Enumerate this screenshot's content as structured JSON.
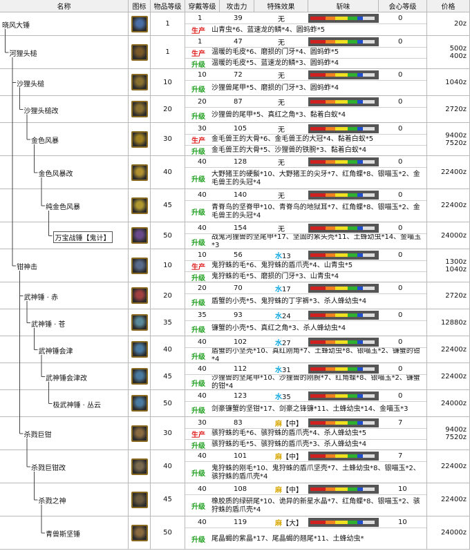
{
  "table": {
    "headers": [
      "名称",
      "图标",
      "物品等级",
      "穿戴等级",
      "攻击力",
      "特殊效果",
      "斩味",
      "会心等级",
      "价格"
    ],
    "rows": [
      {
        "name": "晓风大锤",
        "rarity": 1,
        "slots": 1,
        "attack": 39,
        "special": "无",
        "affinity": 0,
        "price": [
          "20z"
        ],
        "materials": [
          {
            "type": "生产",
            "text": "山青虫*6、蓝速龙的鳞*4、圆蚂蚱*5"
          }
        ]
      },
      {
        "name": "河狸头槌",
        "rarity": 1,
        "slots": 1,
        "attack": 47,
        "special": "无",
        "affinity": 0,
        "price": [
          "500z",
          "400z"
        ],
        "materials": [
          {
            "type": "生产",
            "text": "温暖的毛皮*6、磨损的门牙*4、圆蚂蚱*5"
          },
          {
            "type": "升级",
            "text": "温暖的毛皮*5、蓝速龙的鳞*3、圆蚂蚱*4"
          }
        ]
      },
      {
        "name": "沙狸头槌",
        "rarity": 10,
        "slots": 10,
        "attack": 72,
        "special": "无",
        "affinity": 0,
        "price": [
          "1040z"
        ],
        "materials": [
          {
            "type": "升级",
            "text": "沙狸兽尾甲*5、磨损的门牙*3、圆蚂蚱*4"
          }
        ]
      },
      {
        "name": "沙狸头槌改",
        "rarity": 20,
        "slots": 20,
        "attack": 87,
        "special": "无",
        "affinity": 0,
        "price": [
          "2720z"
        ],
        "materials": [
          {
            "type": "升级",
            "text": "沙狸兽的尾甲*5、真红之角*3、黏着白蚁*4"
          }
        ]
      },
      {
        "name": "金色风暴",
        "rarity": 30,
        "slots": 30,
        "attack": 105,
        "special": "无",
        "affinity": 0,
        "price": [
          "9400z",
          "7520z"
        ],
        "materials": [
          {
            "type": "生产",
            "text": "金毛兽王的大骨*6、金毛兽王的大冠*4、黏着白蚁*5"
          },
          {
            "type": "升级",
            "text": "金毛兽王的大骨*5、沙狸兽的铁腕*3、黏着白蚁*4"
          }
        ]
      },
      {
        "name": "金色风暴改",
        "rarity": 40,
        "slots": 40,
        "attack": 128,
        "special": "无",
        "affinity": 0,
        "price": [
          "22400z"
        ],
        "materials": [
          {
            "type": "升级",
            "text": "大野猪王的硬鬃*10、大野猪王的尖牙*7、红角蝶*8、银喵玉*2、金毛兽王的头冠*4"
          }
        ]
      },
      {
        "name": "纯金色风暴",
        "rarity": 45,
        "slots": 40,
        "attack": 140,
        "special": "无",
        "affinity": 0,
        "price": [
          "22400z"
        ],
        "materials": [
          {
            "type": "升级",
            "text": "青脊鸟的坚脊甲*10、青脊鸟的地狱耳*7、红角蝶*8、银喵玉*2、金毛兽王的头冠*4"
          }
        ]
      },
      {
        "name": "万宝战锤【鬼计】",
        "rarity": 50,
        "slots": 40,
        "attack": 154,
        "special": "无",
        "affinity": 0,
        "price": [
          "24000z"
        ],
        "materials": [
          {
            "type": "升级",
            "text": "战鬼河狸兽的坚尾甲*17、坚固的紫头壳*11、土蜂幼虫*14、金喵玉*3"
          }
        ]
      },
      {
        "name": "钳神击",
        "rarity": 10,
        "slots": 10,
        "attack": 56,
        "special": {
          "element": "水",
          "value": 13
        },
        "affinity": 0,
        "price": [
          "1300z",
          "1040z"
        ],
        "materials": [
          {
            "type": "生产",
            "text": "鬼狩蛛的毛*6、鬼狩蛛的盾爪壳*4、山青虫*5"
          },
          {
            "type": "升级",
            "text": "鬼狩蛛的毛*5、磨损的门牙*3、山青虫*4"
          }
        ]
      },
      {
        "name": "武神锤 · 赤",
        "rarity": 20,
        "slots": 20,
        "attack": 70,
        "special": {
          "element": "水",
          "value": 17
        },
        "affinity": 0,
        "price": [
          "2720z"
        ],
        "materials": [
          {
            "type": "升级",
            "text": "盾蟹的小壳*5、鬼狩蛛的丁字裤*3、杀人蜂幼虫*4"
          }
        ]
      },
      {
        "name": "武神锤 · 苍",
        "rarity": 35,
        "slots": 35,
        "attack": 93,
        "special": {
          "element": "水",
          "value": 24
        },
        "affinity": 0,
        "price": [
          "12880z"
        ],
        "materials": [
          {
            "type": "升级",
            "text": "镰蟹的小壳*5、真红之角*3、杀人蜂幼虫*4"
          }
        ]
      },
      {
        "name": "武神锤会津",
        "rarity": 40,
        "slots": 40,
        "attack": 102,
        "special": {
          "element": "水",
          "value": 27
        },
        "affinity": 0,
        "price": [
          "22400z"
        ],
        "materials": [
          {
            "type": "升级",
            "text": "盾蟹的小坚壳*10、真红刚角*7、土蜂幼虫*8、银喵玉*2、镰蟹的钳*4"
          }
        ]
      },
      {
        "name": "武神锤会津改",
        "rarity": 45,
        "slots": 40,
        "attack": 112,
        "special": {
          "element": "水",
          "value": 31
        },
        "affinity": 0,
        "price": [
          "22400z"
        ],
        "materials": [
          {
            "type": "升级",
            "text": "沙狸兽的坚尾甲*10、沙狸兽的刚腕*7、红角蝶*8、银喵玉*2、镰蟹的钳*4"
          }
        ]
      },
      {
        "name": "极武神锤 · 丛云",
        "rarity": 50,
        "slots": 40,
        "attack": 123,
        "special": {
          "element": "水",
          "value": 35
        },
        "affinity": 0,
        "price": [
          "24000z"
        ],
        "materials": [
          {
            "type": "升级",
            "text": "剑豪镰蟹的坚钳*17、剑豪之锋镰*11、土蜂幼虫*14、金喵玉*3"
          }
        ]
      },
      {
        "name": "杀戮巨钳",
        "rarity": 30,
        "slots": 30,
        "attack": 83,
        "special": {
          "element": "麻",
          "value": "【中】"
        },
        "affinity": 7,
        "price": [
          "9400z",
          "7520z"
        ],
        "materials": [
          {
            "type": "生产",
            "text": "骇狩蛛的毛*6、骇狩蛛的盾爪壳*4、杀人蜂幼虫*5"
          },
          {
            "type": "升级",
            "text": "骇狩蛛的毛*5、骇狩蛛的盾爪壳*3、杀人蜂幼虫*4"
          }
        ]
      },
      {
        "name": "杀戮巨钳改",
        "rarity": 40,
        "slots": 40,
        "attack": 101,
        "special": {
          "element": "麻",
          "value": "【中】"
        },
        "affinity": 7,
        "price": [
          "22400z"
        ],
        "materials": [
          {
            "type": "升级",
            "text": "鬼狩蛛的刚毛*10、鬼狩蛛的盾爪坚壳*7、土蜂幼虫*8、银喵玉*2、骇狩蛛的盾爪壳*4"
          }
        ]
      },
      {
        "name": "杀戮之神",
        "rarity": 45,
        "slots": 40,
        "attack": 108,
        "special": {
          "element": "麻",
          "value": "【中】"
        },
        "affinity": 10,
        "price": [
          "22400z"
        ],
        "materials": [
          {
            "type": "升级",
            "text": "橡胶质的绿研尾*10、诡异的新星水晶*7、红角蝶*8、银喵玉*2、骇狩蛛的盾爪壳*4"
          }
        ]
      },
      {
        "name": "青兽斯坚锤",
        "rarity": 50,
        "slots": 40,
        "attack": 119,
        "special": {
          "element": "麻",
          "value": "【大】"
        },
        "affinity": 10,
        "price": [
          "24000z"
        ],
        "materials": [
          {
            "type": "升级",
            "text": "尾晶蝎的紫晶*17、尾晶蝎的翘尾*11、土蜂幼虫*"
          }
        ]
      }
    ]
  }
}
